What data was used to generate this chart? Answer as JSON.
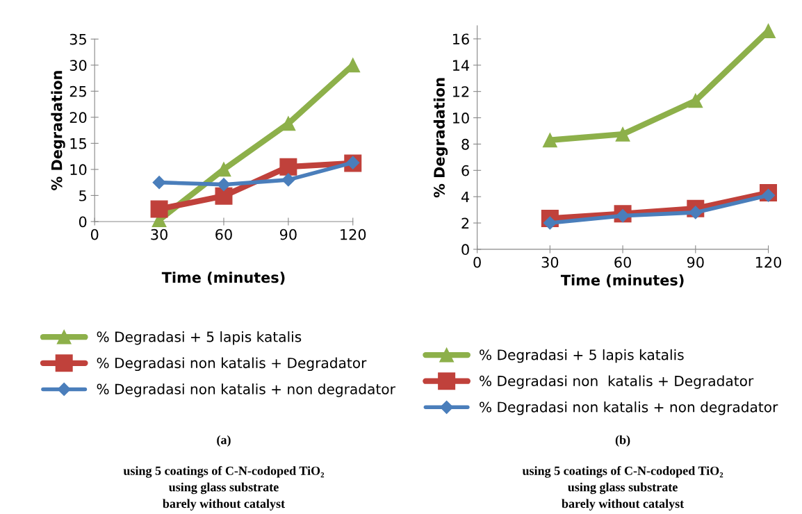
{
  "chart_data": [
    {
      "type": "line",
      "xlabel": "Time (minutes)",
      "ylabel": "% Degradation",
      "x": [
        30,
        60,
        90,
        120
      ],
      "xlim": [
        0,
        120
      ],
      "xticks": [
        0,
        30,
        60,
        90,
        120
      ],
      "ylim": [
        0,
        35
      ],
      "yticks": [
        0,
        5,
        10,
        15,
        20,
        25,
        30,
        35
      ],
      "grid": false,
      "legend": "bottom",
      "line_style": "solid",
      "series": [
        {
          "name": "% Degradasi + 5 lapis katalis",
          "color": "#8db04a",
          "marker": "triangle",
          "values": [
            0.3,
            10,
            18.8,
            30
          ]
        },
        {
          "name": "% Degradasi non katalis + Degradator",
          "color": "#c0413b",
          "marker": "square",
          "values": [
            2.4,
            4.9,
            10.5,
            11.2
          ]
        },
        {
          "name": "% Degradasi non katalis + non degradator",
          "color": "#4a7ebb",
          "marker": "diamond",
          "values": [
            7.5,
            7.1,
            8.0,
            11.3
          ]
        }
      ],
      "annotations": [
        "(a)",
        "using 5 coatings of C-N-codoped TiO₂",
        "using glass substrate",
        "barely without catalyst"
      ]
    },
    {
      "type": "line",
      "xlabel": "Time (minutes)",
      "ylabel": "% Degradation",
      "x": [
        30,
        60,
        90,
        120
      ],
      "xlim": [
        0,
        120
      ],
      "xticks": [
        0,
        30,
        60,
        90,
        120
      ],
      "ylim": [
        0,
        17
      ],
      "yticks": [
        0,
        2,
        4,
        6,
        8,
        10,
        12,
        14,
        16
      ],
      "grid": false,
      "legend": "bottom",
      "line_style": "solid",
      "series": [
        {
          "name": "% Degradasi + 5 lapis katalis",
          "color": "#8db04a",
          "marker": "triangle",
          "values": [
            8.3,
            8.75,
            11.3,
            16.6
          ]
        },
        {
          "name": "% Degradasi non  katalis + Degradator",
          "color": "#c0413b",
          "marker": "square",
          "values": [
            2.35,
            2.7,
            3.1,
            4.3
          ]
        },
        {
          "name": "% Degradasi non katalis + non degradator",
          "color": "#4a7ebb",
          "marker": "diamond",
          "values": [
            2.0,
            2.55,
            2.8,
            4.1
          ]
        }
      ],
      "annotations": [
        "(b)",
        "using 5 coatings of C-N-codoped TiO₂",
        "using glass substrate",
        "barely without catalyst"
      ]
    }
  ]
}
